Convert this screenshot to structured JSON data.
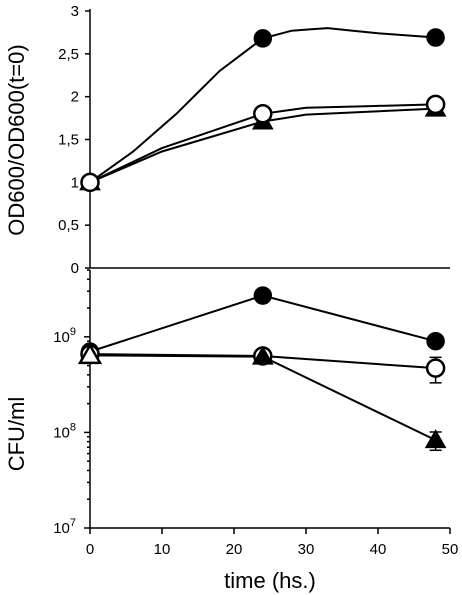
{
  "chart_data": [
    {
      "panel": "top",
      "type": "line",
      "ylabel": "OD600/OD600(t=0)",
      "ylim": [
        0,
        3
      ],
      "yticks": [
        0,
        0.5,
        1,
        1.5,
        2,
        2.5,
        3
      ],
      "ytick_labels": [
        "0",
        "0,5",
        "1",
        "1,5",
        "2",
        "2,5",
        "3"
      ],
      "xlim": [
        0,
        50
      ],
      "series": [
        {
          "marker": "filled-circle",
          "points": [
            [
              0,
              1.0
            ],
            [
              24,
              2.68
            ],
            [
              48,
              2.69
            ]
          ],
          "curve": [
            [
              0,
              1.0
            ],
            [
              6,
              1.36
            ],
            [
              12,
              1.8
            ],
            [
              18,
              2.3
            ],
            [
              24,
              2.68
            ],
            [
              28,
              2.77
            ],
            [
              33,
              2.8
            ],
            [
              40,
              2.74
            ],
            [
              48,
              2.69
            ]
          ]
        },
        {
          "marker": "open-circle",
          "points": [
            [
              0,
              1.0
            ],
            [
              24,
              1.8
            ],
            [
              48,
              1.91
            ]
          ],
          "curve": [
            [
              0,
              1.0
            ],
            [
              10,
              1.4
            ],
            [
              24,
              1.8
            ],
            [
              30,
              1.87
            ],
            [
              48,
              1.91
            ]
          ]
        },
        {
          "marker": "filled-triangle",
          "points": [
            [
              0,
              1.0
            ],
            [
              24,
              1.71
            ],
            [
              48,
              1.86
            ]
          ],
          "curve": [
            [
              0,
              1.0
            ],
            [
              10,
              1.36
            ],
            [
              24,
              1.71
            ],
            [
              30,
              1.79
            ],
            [
              48,
              1.86
            ]
          ]
        }
      ]
    },
    {
      "panel": "bottom",
      "type": "line",
      "ylabel": "CFU/ml",
      "yscale": "log",
      "ylim": [
        10000000,
        5000000000
      ],
      "yticks": [
        10000000,
        100000000,
        1000000000
      ],
      "ytick_labels": [
        {
          "base": "10",
          "exp": "7"
        },
        {
          "base": "10",
          "exp": "8"
        },
        {
          "base": "10",
          "exp": "9"
        }
      ],
      "xlabel": "time (hs.)",
      "xlim": [
        0,
        50
      ],
      "xticks": [
        0,
        10,
        20,
        30,
        40,
        50
      ],
      "xtick_labels": [
        "0",
        "10",
        "20",
        "30",
        "40",
        "50"
      ],
      "series": [
        {
          "marker": "filled-circle",
          "points": [
            [
              0,
              700000000
            ],
            [
              24,
              2700000000
            ],
            [
              48,
              900000000
            ]
          ]
        },
        {
          "marker": "open-circle",
          "points": [
            [
              0,
              660000000
            ],
            [
              24,
              630000000
            ],
            [
              48,
              470000000
            ]
          ],
          "error": [
            null,
            null,
            140000000
          ]
        },
        {
          "marker": "filled-triangle",
          "points": [
            [
              0,
              640000000
            ],
            [
              24,
              620000000
            ],
            [
              48,
              83000000
            ]
          ],
          "error": [
            null,
            null,
            18000000
          ]
        },
        {
          "marker": "open-triangle",
          "points": [
            [
              0,
              640000000
            ]
          ]
        }
      ]
    }
  ]
}
